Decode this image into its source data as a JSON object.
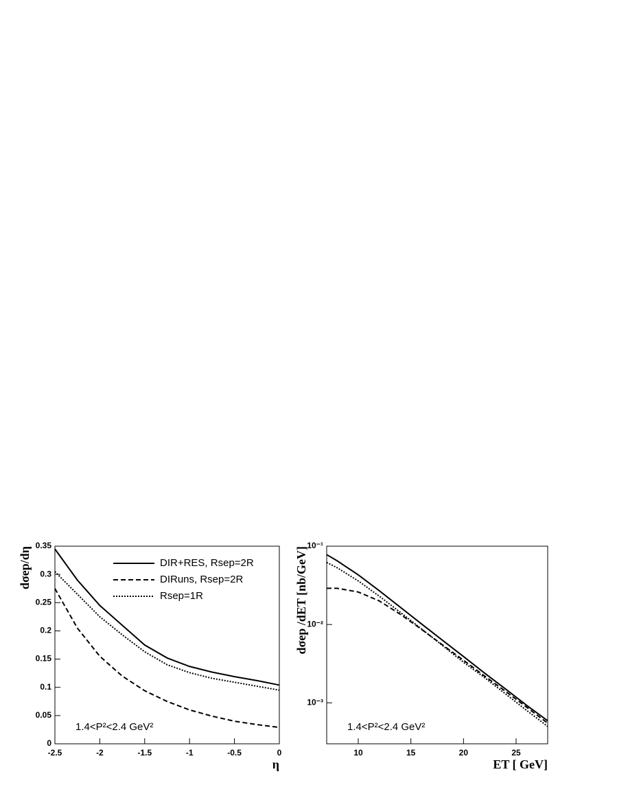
{
  "chart_data": [
    {
      "type": "line",
      "ylabel": "dσep/dη",
      "xlabel": "η",
      "annotation": "1.4<P²<2.4 GeV²",
      "x": [
        -2.5,
        -2.25,
        -2,
        -1.75,
        -1.5,
        -1.25,
        -1,
        -0.75,
        -0.5,
        -0.25,
        0
      ],
      "xlim": [
        -2.5,
        0
      ],
      "xticks": [
        -2.5,
        -2,
        -1.5,
        -1,
        -0.5,
        0
      ],
      "ylim": [
        0,
        0.35
      ],
      "yticks": [
        0,
        0.05,
        0.1,
        0.15,
        0.2,
        0.25,
        0.3,
        0.35
      ],
      "yscale": "linear",
      "legend": "upper right",
      "series": [
        {
          "name": "DIR+RES, Rsep=2R",
          "color": "#000000",
          "dash": "solid",
          "values": [
            0.345,
            0.29,
            0.245,
            0.21,
            0.175,
            0.152,
            0.137,
            0.127,
            0.119,
            0.112,
            0.104
          ]
        },
        {
          "name": "DIRuns, Rsep=2R",
          "color": "#000000",
          "dash": "dashed",
          "values": [
            0.275,
            0.205,
            0.155,
            0.12,
            0.094,
            0.075,
            0.06,
            0.049,
            0.04,
            0.034,
            0.029
          ]
        },
        {
          "name": "Rsep=1R",
          "color": "#000000",
          "dash": "dotted",
          "values": [
            0.305,
            0.265,
            0.225,
            0.193,
            0.163,
            0.14,
            0.126,
            0.116,
            0.109,
            0.102,
            0.095
          ]
        }
      ]
    },
    {
      "type": "line",
      "ylabel": "dσep /dET [nb/GeV]",
      "xlabel": "ET [ GeV]",
      "annotation": "1.4<P²<2.4 GeV²",
      "x": [
        7,
        8,
        10,
        12,
        14,
        16,
        18,
        20,
        22,
        24,
        26,
        28
      ],
      "xlim": [
        7,
        28
      ],
      "xticks": [
        10,
        15,
        20,
        25
      ],
      "ylim": [
        0.0003,
        0.1
      ],
      "yticks": [
        {
          "value": 0.001,
          "label": "10⁻³"
        },
        {
          "value": 0.01,
          "label": "10⁻²"
        },
        {
          "value": 0.1,
          "label": "10⁻¹"
        }
      ],
      "yscale": "log",
      "series": [
        {
          "color": "#000000",
          "dash": "solid",
          "values": [
            0.078,
            0.065,
            0.043,
            0.027,
            0.0166,
            0.0102,
            0.0063,
            0.0039,
            0.0024,
            0.0015,
            0.00093,
            0.00059
          ]
        },
        {
          "color": "#000000",
          "dash": "dashed",
          "values": [
            0.029,
            0.029,
            0.026,
            0.02,
            0.0135,
            0.0087,
            0.0055,
            0.0035,
            0.0022,
            0.0014,
            0.00088,
            0.00055
          ]
        },
        {
          "color": "#000000",
          "dash": "dotted",
          "values": [
            0.062,
            0.053,
            0.036,
            0.023,
            0.0143,
            0.0088,
            0.0054,
            0.0033,
            0.0021,
            0.0013,
            0.0008,
            0.0005
          ]
        }
      ]
    }
  ]
}
